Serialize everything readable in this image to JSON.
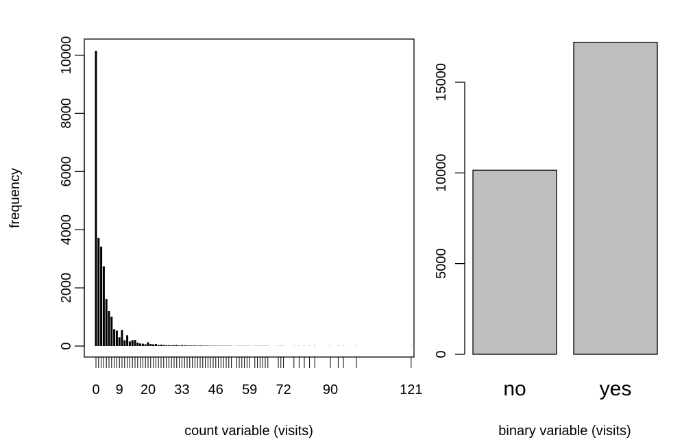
{
  "chart_data": [
    {
      "type": "bar",
      "xlabel": "count variable (visits)",
      "ylabel": "frequency",
      "ylim": [
        0,
        10000
      ],
      "y_ticks": [
        0,
        2000,
        4000,
        6000,
        8000,
        10000
      ],
      "x_tick_labels": [
        0,
        9,
        20,
        33,
        46,
        59,
        72,
        90,
        121
      ],
      "x": [
        0,
        1,
        2,
        3,
        4,
        5,
        6,
        7,
        8,
        9,
        10,
        11,
        12,
        13,
        14,
        15,
        16,
        17,
        18,
        19,
        20,
        21,
        22,
        23,
        24,
        25,
        26,
        27,
        28,
        29,
        30,
        31,
        32,
        33,
        34,
        35,
        36,
        37,
        38,
        39,
        40,
        41,
        42,
        43,
        44,
        45,
        46,
        47,
        48,
        49,
        50,
        51,
        52,
        54,
        55,
        56,
        57,
        58,
        59,
        61,
        62,
        63,
        64,
        65,
        66,
        70,
        71,
        72,
        76,
        78,
        80,
        82,
        84,
        90,
        93,
        95,
        100,
        121
      ],
      "values": [
        10150,
        3720,
        3420,
        2740,
        1620,
        1200,
        1010,
        580,
        530,
        300,
        550,
        200,
        370,
        160,
        200,
        210,
        120,
        90,
        80,
        60,
        130,
        70,
        60,
        70,
        40,
        50,
        40,
        30,
        30,
        30,
        30,
        40,
        20,
        30,
        25,
        20,
        20,
        20,
        20,
        15,
        20,
        15,
        15,
        15,
        10,
        10,
        10,
        10,
        10,
        10,
        10,
        8,
        8,
        6,
        6,
        6,
        6,
        6,
        6,
        6,
        6,
        6,
        6,
        6,
        6,
        5,
        5,
        5,
        5,
        5,
        5,
        5,
        5,
        5,
        5,
        5,
        5,
        5
      ]
    },
    {
      "type": "bar",
      "xlabel": "binary variable (visits)",
      "ylabel": "",
      "categories": [
        "no",
        "yes"
      ],
      "values": [
        10150,
        17200
      ],
      "ylim": [
        0,
        15000
      ],
      "y_ticks": [
        0,
        5000,
        10000,
        15000
      ],
      "bar_color": "#bebebe"
    }
  ]
}
